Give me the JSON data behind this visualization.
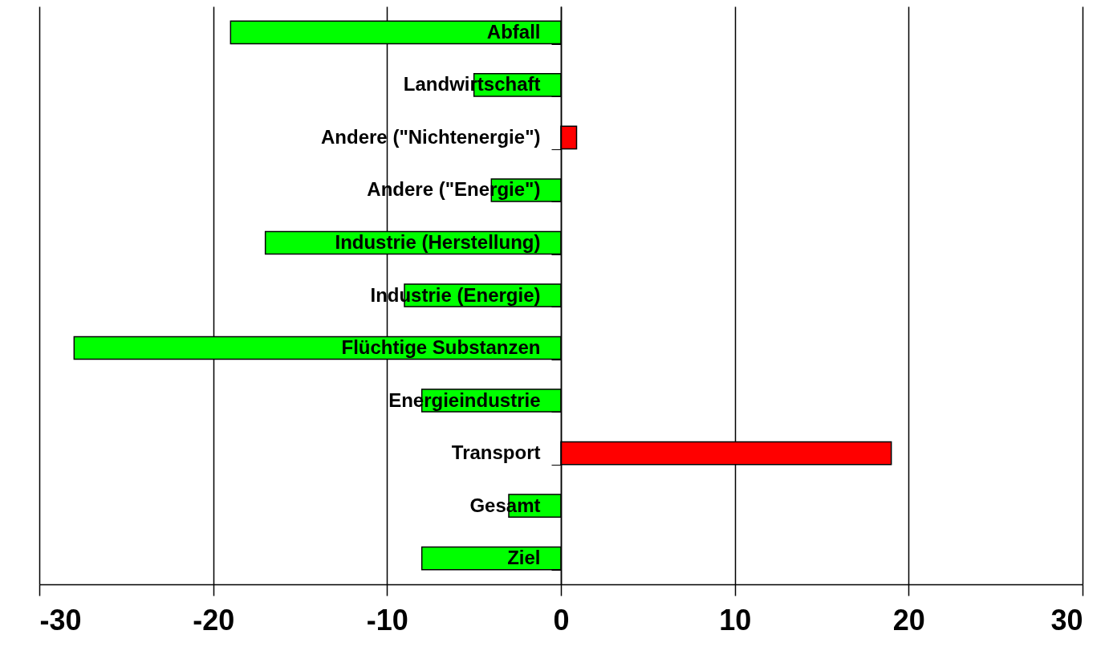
{
  "chart_data": {
    "type": "bar",
    "orientation": "horizontal",
    "categories": [
      "Abfall",
      "Landwirtschaft",
      "Andere (\"Nichtenergie\")",
      "Andere (\"Energie\")",
      "Industrie (Herstellung)",
      "Industrie (Energie)",
      "Flüchtige Substanzen",
      "Energieindustrie",
      "Transport",
      "Gesamt",
      "Ziel"
    ],
    "values": [
      -19,
      -5,
      0.9,
      -4,
      -17,
      -9,
      -28,
      -8,
      19,
      -3,
      -8
    ],
    "colors": [
      "#00ff00",
      "#00ff00",
      "#ff0000",
      "#00ff00",
      "#00ff00",
      "#00ff00",
      "#00ff00",
      "#00ff00",
      "#ff0000",
      "#00ff00",
      "#00ff00"
    ],
    "xlim": [
      -30,
      30
    ],
    "xticks": [
      -30,
      -20,
      -10,
      0,
      10,
      20,
      30
    ],
    "grid": "x"
  }
}
